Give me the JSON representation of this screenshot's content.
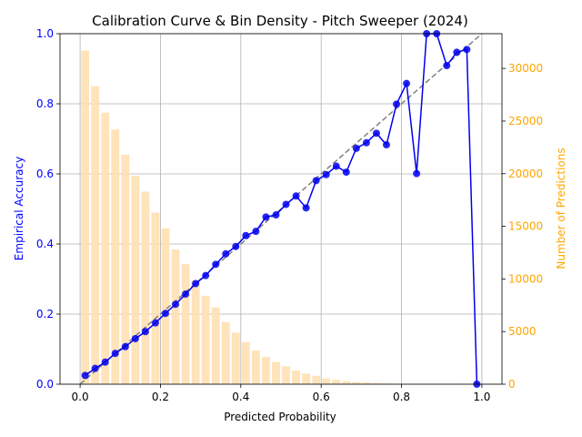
{
  "chart_data": {
    "type": "line+bar",
    "title": "Calibration Curve & Bin Density - Pitch Sweeper (2024)",
    "xlabel": "Predicted Probability",
    "ylabel_left": "Empirical Accuracy",
    "ylabel_right": "Number of Predictions",
    "xlim": [
      -0.05,
      1.05
    ],
    "ylim_left": [
      0,
      1.0
    ],
    "ylim_right": [
      0,
      33300
    ],
    "x_ticks": [
      "0.0",
      "0.2",
      "0.4",
      "0.6",
      "0.8",
      "1.0"
    ],
    "x_tick_values": [
      0.0,
      0.2,
      0.4,
      0.6,
      0.8,
      1.0
    ],
    "y_left_ticks": [
      "0.0",
      "0.2",
      "0.4",
      "0.6",
      "0.8",
      "1.0"
    ],
    "y_left_tick_values": [
      0.0,
      0.2,
      0.4,
      0.6,
      0.8,
      1.0
    ],
    "y_right_ticks": [
      "0",
      "5000",
      "10000",
      "15000",
      "20000",
      "25000",
      "30000"
    ],
    "y_right_tick_values": [
      0,
      5000,
      10000,
      15000,
      20000,
      25000,
      30000
    ],
    "grid": true,
    "colors": {
      "calibration": "#0000ee",
      "reference": "#808080",
      "bars": "#ffe0b2",
      "left_axis": "#0000ff",
      "right_axis": "#ffa500"
    },
    "bins_x": [
      0.0125,
      0.0375,
      0.0625,
      0.0875,
      0.1125,
      0.1375,
      0.1625,
      0.1875,
      0.2125,
      0.2375,
      0.2625,
      0.2875,
      0.3125,
      0.3375,
      0.3625,
      0.3875,
      0.4125,
      0.4375,
      0.4625,
      0.4875,
      0.5125,
      0.5375,
      0.5625,
      0.5875,
      0.6125,
      0.6375,
      0.6625,
      0.6875,
      0.7125,
      0.7375,
      0.7625,
      0.7875,
      0.8125,
      0.8375,
      0.8625,
      0.8875,
      0.9125,
      0.9375,
      0.9625,
      0.9875
    ],
    "counts": [
      31700,
      28300,
      25800,
      24200,
      21800,
      19800,
      18300,
      16300,
      14800,
      12800,
      11400,
      9900,
      8400,
      7300,
      5900,
      4900,
      4000,
      3200,
      2600,
      2100,
      1700,
      1300,
      1000,
      800,
      550,
      420,
      300,
      220,
      160,
      110,
      75,
      50,
      35,
      25,
      15,
      10,
      6,
      4,
      2,
      1
    ],
    "calibration": {
      "name": "",
      "x": [
        0.0125,
        0.0375,
        0.0625,
        0.0875,
        0.1125,
        0.1375,
        0.1625,
        0.1875,
        0.2125,
        0.2375,
        0.2625,
        0.2875,
        0.3125,
        0.3375,
        0.3625,
        0.3875,
        0.4125,
        0.4375,
        0.4625,
        0.4875,
        0.5125,
        0.5375,
        0.5625,
        0.5875,
        0.6125,
        0.6375,
        0.6625,
        0.6875,
        0.7125,
        0.7375,
        0.7625,
        0.7875,
        0.8125,
        0.8375,
        0.8625,
        0.8875,
        0.9125,
        0.9375,
        0.9625,
        0.9875
      ],
      "y": [
        0.025,
        0.045,
        0.063,
        0.088,
        0.107,
        0.13,
        0.15,
        0.175,
        0.202,
        0.228,
        0.257,
        0.287,
        0.31,
        0.342,
        0.372,
        0.393,
        0.424,
        0.436,
        0.477,
        0.483,
        0.513,
        0.537,
        0.503,
        0.581,
        0.598,
        0.622,
        0.605,
        0.673,
        0.689,
        0.716,
        0.683,
        0.799,
        0.858,
        0.601,
        1.0,
        1.0,
        0.909,
        0.947,
        0.955,
        0.0
      ]
    },
    "reference_line": {
      "x": [
        0,
        1
      ],
      "y": [
        0,
        1
      ]
    }
  }
}
